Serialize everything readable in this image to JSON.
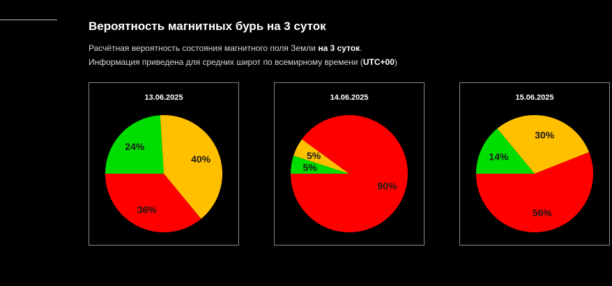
{
  "header": {
    "title": "Вероятность магнитных бурь на 3 суток",
    "desc_line1_prefix": "Расчётная вероятность состояния магнитного поля Земли ",
    "desc_line1_bold": "на 3 суток",
    "desc_line1_suffix": ".",
    "desc_line2_prefix": "Информация приведена для средних широт по всемирному времени (",
    "desc_line2_bold": "UTC+00",
    "desc_line2_suffix": ")"
  },
  "colors": {
    "green": "#00dd00",
    "yellow": "#ffc000",
    "red": "#ff0000"
  },
  "chart_data": [
    {
      "type": "pie",
      "title": "13.06.2025",
      "categories": [
        "green",
        "yellow",
        "red"
      ],
      "values": [
        24,
        40,
        36
      ],
      "labels": [
        "24%",
        "40%",
        "36%"
      ],
      "start_angle": "9 o'clock, clockwise"
    },
    {
      "type": "pie",
      "title": "14.06.2025",
      "categories": [
        "green",
        "yellow",
        "red"
      ],
      "values": [
        5,
        5,
        90
      ],
      "labels": [
        "5%",
        "5%",
        "90%"
      ],
      "start_angle": "9 o'clock, clockwise"
    },
    {
      "type": "pie",
      "title": "15.06.2025",
      "categories": [
        "green",
        "yellow",
        "red"
      ],
      "values": [
        14,
        30,
        56
      ],
      "labels": [
        "14%",
        "30%",
        "56%"
      ],
      "start_angle": "9 o'clock, clockwise"
    }
  ],
  "bottom_heading": ""
}
